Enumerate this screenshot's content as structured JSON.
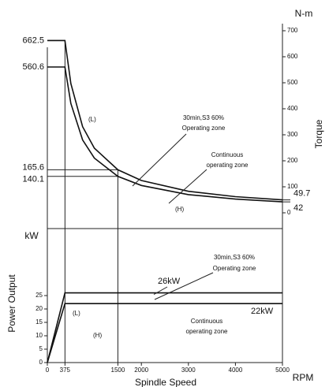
{
  "chart_data": [
    {
      "type": "line",
      "y_unit": "N-m",
      "ylabel": "Torque",
      "ylim": [
        0,
        700
      ],
      "yticks": [
        0,
        100,
        200,
        300,
        400,
        500,
        600,
        700
      ],
      "xlim": [
        0,
        5000
      ],
      "left_ticks": [
        662.5,
        560.6,
        165.6,
        140.1
      ],
      "end_labels": [
        49.7,
        42
      ],
      "series": [
        {
          "name": "(L)",
          "color": "#111",
          "x": [
            0,
            375,
            500,
            750,
            1000,
            1500,
            2000,
            3000,
            4000,
            5000
          ],
          "values": [
            662.5,
            662.5,
            496.9,
            331.3,
            248.4,
            165.6,
            124.2,
            82.8,
            62.1,
            49.7
          ]
        },
        {
          "name": "(H)",
          "color": "#111",
          "x": [
            0,
            375,
            500,
            750,
            1000,
            1500,
            2000,
            3000,
            4000,
            5000
          ],
          "values": [
            560.6,
            560.6,
            420.5,
            280.3,
            210.2,
            140.1,
            105.1,
            70.1,
            52.6,
            42
          ]
        }
      ],
      "annotations": [
        "30min,S3  60%",
        "Operating zone",
        "Continuous",
        "operating zone"
      ]
    },
    {
      "type": "line",
      "y_unit": "kW",
      "ylabel": "Power Output",
      "xlabel": "Spindle Speed",
      "x_unit": "RPM",
      "ylim": [
        0,
        50
      ],
      "yticks": [
        0,
        5,
        10,
        15,
        20,
        25
      ],
      "xlim": [
        0,
        5000
      ],
      "xticks": [
        0,
        375,
        1500,
        2000,
        3000,
        4000,
        5000
      ],
      "series": [
        {
          "name": "(L)",
          "label": "26kW",
          "color": "#111",
          "x": [
            0,
            375,
            5000
          ],
          "values": [
            0,
            26,
            26
          ]
        },
        {
          "name": "(H)",
          "label": "22kW",
          "color": "#111",
          "x": [
            0,
            375,
            5000
          ],
          "values": [
            0,
            22,
            22
          ]
        }
      ],
      "annotations": [
        "30min,S3  60%",
        "Operating zone",
        "Continuous",
        "operating zone"
      ]
    }
  ]
}
